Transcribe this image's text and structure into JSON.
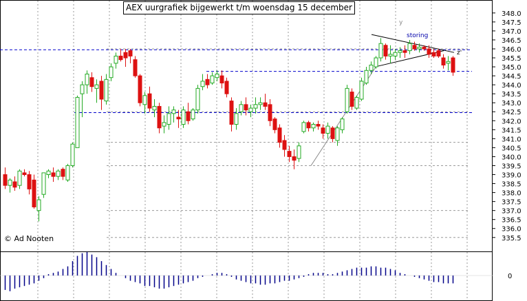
{
  "chart_data": {
    "type": "candlestick",
    "title": "AEX uurgrafiek bijgewerkt t/m woensdag 15 december",
    "copyright": "© Ad Nooten",
    "y_range": [
      335.3,
      348.3
    ],
    "y_ticks": [
      "348.0",
      "347.5",
      "347.0",
      "346.5",
      "346.0",
      "345.5",
      "345.0",
      "344.5",
      "344.0",
      "343.5",
      "343.0",
      "342.5",
      "342.0",
      "341.5",
      "341.0",
      "340.5",
      "340.0",
      "339.5",
      "339.0",
      "338.5",
      "338.0",
      "337.5",
      "337.0",
      "336.5",
      "336.0",
      "335.5"
    ],
    "osc_tick": "0",
    "annotations": {
      "storing": "storing",
      "y": "y",
      "z": "z'"
    },
    "colors": {
      "up": "#22aa22",
      "down": "#dd1111",
      "hline": "#0000cc",
      "grid": "#999999",
      "osc": "#000088",
      "trend": "#000000"
    },
    "candles": [
      [
        339.0,
        339.4,
        338.2,
        338.4
      ],
      [
        338.4,
        338.8,
        338.0,
        338.7
      ],
      [
        338.6,
        338.9,
        338.1,
        338.3
      ],
      [
        338.4,
        339.3,
        338.2,
        339.2
      ],
      [
        339.1,
        339.3,
        338.9,
        339.0
      ],
      [
        339.0,
        339.2,
        337.9,
        338.2
      ],
      [
        338.7,
        339.0,
        337.1,
        337.2
      ],
      [
        337.0,
        337.8,
        336.4,
        337.6
      ],
      [
        337.9,
        339.1,
        337.7,
        339.1
      ],
      [
        339.0,
        339.3,
        338.8,
        339.2
      ],
      [
        339.1,
        339.4,
        338.6,
        338.9
      ],
      [
        338.9,
        339.3,
        338.7,
        339.2
      ],
      [
        339.3,
        339.4,
        338.7,
        338.9
      ],
      [
        338.7,
        339.6,
        338.6,
        339.5
      ],
      [
        339.5,
        340.8,
        339.4,
        340.7
      ],
      [
        340.5,
        343.4,
        340.5,
        343.3
      ],
      [
        343.5,
        344.2,
        342.2,
        344.0
      ],
      [
        344.0,
        344.8,
        343.5,
        344.6
      ],
      [
        344.4,
        344.7,
        343.6,
        343.9
      ],
      [
        343.8,
        344.3,
        343.0,
        344.0
      ],
      [
        344.2,
        344.5,
        342.6,
        343.2
      ],
      [
        343.1,
        344.6,
        342.9,
        344.3
      ],
      [
        344.4,
        345.2,
        344.2,
        345.0
      ],
      [
        345.2,
        345.8,
        344.9,
        345.6
      ],
      [
        345.6,
        346.0,
        345.3,
        345.4
      ],
      [
        345.8,
        346.0,
        345.0,
        345.5
      ],
      [
        345.9,
        346.0,
        345.2,
        345.6
      ],
      [
        345.4,
        345.6,
        344.4,
        344.5
      ],
      [
        344.5,
        344.6,
        342.8,
        343.0
      ],
      [
        342.9,
        343.6,
        342.4,
        343.4
      ],
      [
        343.5,
        343.9,
        342.5,
        342.7
      ],
      [
        342.6,
        343.2,
        342.2,
        342.8
      ],
      [
        342.8,
        343.0,
        341.3,
        341.6
      ],
      [
        341.7,
        342.3,
        341.3,
        341.9
      ],
      [
        341.8,
        342.8,
        341.5,
        342.4
      ],
      [
        342.4,
        342.8,
        341.9,
        342.6
      ],
      [
        342.2,
        342.6,
        341.6,
        342.1
      ],
      [
        341.8,
        342.8,
        341.6,
        342.6
      ],
      [
        342.5,
        343.0,
        341.8,
        342.0
      ],
      [
        342.1,
        342.7,
        342.0,
        342.6
      ],
      [
        342.6,
        344.0,
        342.4,
        343.8
      ],
      [
        343.9,
        344.6,
        343.7,
        344.2
      ],
      [
        344.3,
        344.6,
        343.8,
        344.0
      ],
      [
        344.1,
        344.7,
        344.0,
        344.5
      ],
      [
        344.4,
        344.8,
        344.2,
        344.6
      ],
      [
        344.5,
        344.8,
        343.8,
        344.1
      ],
      [
        344.2,
        344.4,
        343.3,
        343.5
      ],
      [
        343.1,
        343.3,
        341.4,
        341.8
      ],
      [
        341.8,
        342.7,
        341.5,
        342.4
      ],
      [
        342.5,
        343.1,
        342.3,
        342.9
      ],
      [
        342.9,
        343.3,
        342.3,
        342.6
      ],
      [
        342.5,
        342.9,
        342.2,
        342.7
      ],
      [
        342.7,
        343.3,
        342.4,
        342.9
      ],
      [
        342.9,
        343.3,
        342.6,
        343.0
      ],
      [
        343.0,
        343.5,
        342.6,
        342.8
      ],
      [
        342.9,
        343.2,
        341.7,
        342.0
      ],
      [
        342.1,
        342.2,
        341.3,
        341.5
      ],
      [
        341.6,
        341.8,
        340.5,
        340.8
      ],
      [
        340.9,
        341.2,
        340.0,
        340.4
      ],
      [
        340.3,
        340.6,
        339.7,
        340.0
      ],
      [
        340.0,
        340.4,
        339.3,
        339.8
      ],
      [
        339.9,
        340.8,
        339.7,
        340.6
      ],
      [
        341.4,
        342.0,
        341.3,
        341.9
      ],
      [
        341.9,
        342.0,
        341.4,
        341.6
      ],
      [
        341.6,
        341.9,
        341.4,
        341.8
      ],
      [
        341.8,
        342.0,
        341.5,
        341.7
      ],
      [
        341.6,
        341.8,
        341.0,
        341.3
      ],
      [
        341.3,
        341.9,
        341.0,
        341.7
      ],
      [
        341.6,
        341.7,
        340.8,
        341.0
      ],
      [
        340.9,
        341.7,
        340.6,
        341.6
      ],
      [
        341.5,
        342.2,
        341.3,
        342.1
      ],
      [
        342.5,
        344.0,
        342.4,
        343.8
      ],
      [
        343.6,
        343.8,
        342.6,
        342.8
      ],
      [
        342.7,
        343.4,
        342.6,
        343.3
      ],
      [
        343.2,
        344.4,
        343.1,
        344.2
      ],
      [
        344.1,
        345.0,
        344.0,
        344.8
      ],
      [
        344.8,
        345.3,
        344.6,
        345.1
      ],
      [
        345.0,
        345.6,
        344.9,
        345.5
      ],
      [
        345.5,
        346.6,
        345.3,
        346.3
      ],
      [
        346.2,
        346.3,
        345.4,
        345.6
      ],
      [
        345.6,
        346.2,
        345.2,
        345.7
      ],
      [
        345.6,
        346.0,
        345.4,
        345.8
      ],
      [
        345.8,
        346.1,
        345.5,
        345.9
      ],
      [
        345.9,
        346.2,
        345.5,
        345.8
      ],
      [
        345.9,
        346.5,
        345.7,
        346.3
      ],
      [
        346.2,
        346.4,
        345.9,
        346.0
      ],
      [
        346.0,
        346.3,
        345.8,
        346.1
      ],
      [
        346.1,
        346.2,
        345.9,
        346.0
      ],
      [
        346.0,
        346.2,
        345.5,
        345.7
      ],
      [
        345.8,
        346.0,
        345.5,
        345.6
      ],
      [
        345.9,
        346.0,
        345.5,
        345.6
      ],
      [
        345.5,
        345.7,
        344.9,
        345.1
      ],
      [
        345.2,
        345.6,
        344.8,
        345.3
      ],
      [
        345.5,
        345.6,
        344.5,
        344.7
      ]
    ],
    "hlines": [
      {
        "y": 345.95,
        "x0": 0,
        "x1": 686
      },
      {
        "y": 344.75,
        "x0": 300,
        "x1": 686
      },
      {
        "y": 342.45,
        "x0": 108,
        "x1": 686
      }
    ],
    "gridlines_y": [
      346.0,
      342.5,
      340.8,
      339.5,
      337.0,
      335.5
    ],
    "oscillator": [
      -0.55,
      -0.6,
      -0.5,
      -0.45,
      -0.4,
      -0.35,
      -0.3,
      -0.2,
      -0.1,
      0.05,
      0.1,
      0.15,
      0.25,
      0.35,
      0.55,
      0.75,
      0.85,
      0.9,
      0.8,
      0.7,
      0.55,
      0.4,
      0.25,
      0.1,
      0.0,
      -0.1,
      -0.2,
      -0.25,
      -0.3,
      -0.4,
      -0.4,
      -0.45,
      -0.5,
      -0.5,
      -0.45,
      -0.4,
      -0.35,
      -0.3,
      -0.25,
      -0.2,
      -0.1,
      -0.05,
      0.0,
      0.05,
      0.1,
      0.1,
      0.05,
      -0.05,
      -0.15,
      -0.2,
      -0.25,
      -0.3,
      -0.3,
      -0.35,
      -0.35,
      -0.3,
      -0.3,
      -0.25,
      -0.2,
      -0.2,
      -0.15,
      -0.1,
      -0.05,
      0.05,
      0.1,
      0.1,
      0.1,
      0.05,
      0.05,
      0.1,
      0.15,
      0.2,
      0.25,
      0.3,
      0.3,
      0.3,
      0.35,
      0.35,
      0.3,
      0.3,
      0.25,
      0.2,
      0.1,
      0.05,
      0.0,
      -0.05,
      -0.1,
      -0.15,
      -0.2,
      -0.25,
      -0.25,
      -0.3,
      -0.3,
      -0.3
    ]
  }
}
